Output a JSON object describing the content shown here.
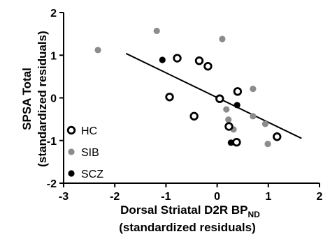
{
  "chart_data": {
    "type": "scatter",
    "title": "",
    "xlabel": "Dorsal Striatal D2R BP",
    "xlabel_sub": "ND",
    "xlabel_line2": "(standardized residuals)",
    "ylabel": "SPSA Total",
    "ylabel_line2": "(standardized residuals)",
    "xlim": [
      -3,
      2
    ],
    "ylim": [
      -2,
      2
    ],
    "xticks": [
      -3,
      -2,
      -1,
      0,
      1,
      2
    ],
    "yticks": [
      -2,
      -1,
      0,
      1,
      2
    ],
    "grid": false,
    "legend_position": "lower-left",
    "series": [
      {
        "name": "HC",
        "marker": "open-circle",
        "color": "#000000",
        "points": [
          {
            "x": -0.78,
            "y": 0.93
          },
          {
            "x": -0.35,
            "y": 0.87
          },
          {
            "x": -0.18,
            "y": 0.74
          },
          {
            "x": -0.93,
            "y": 0.02
          },
          {
            "x": -0.45,
            "y": -0.43
          },
          {
            "x": 0.05,
            "y": -0.02
          },
          {
            "x": 0.4,
            "y": 0.15
          },
          {
            "x": 0.23,
            "y": -0.67
          },
          {
            "x": 0.38,
            "y": -1.04
          },
          {
            "x": 1.17,
            "y": -0.91
          }
        ]
      },
      {
        "name": "SIB",
        "marker": "filled-circle",
        "color": "#8c8c8c",
        "points": [
          {
            "x": -2.33,
            "y": 1.12
          },
          {
            "x": -1.18,
            "y": 1.57
          },
          {
            "x": 0.1,
            "y": 1.38
          },
          {
            "x": 0.7,
            "y": 0.21
          },
          {
            "x": 0.18,
            "y": -0.27
          },
          {
            "x": 0.22,
            "y": -0.51
          },
          {
            "x": 0.32,
            "y": -0.74
          },
          {
            "x": 0.7,
            "y": -0.43
          },
          {
            "x": 0.94,
            "y": -0.61
          },
          {
            "x": 0.99,
            "y": -1.08
          }
        ]
      },
      {
        "name": "SCZ",
        "marker": "filled-circle",
        "color": "#000000",
        "points": [
          {
            "x": -1.07,
            "y": 0.89
          },
          {
            "x": 0.39,
            "y": -0.17
          },
          {
            "x": 0.27,
            "y": -1.05
          }
        ]
      }
    ],
    "fit_line": {
      "x": [
        -1.78,
        1.65
      ],
      "y": [
        1.04,
        -0.95
      ]
    }
  }
}
